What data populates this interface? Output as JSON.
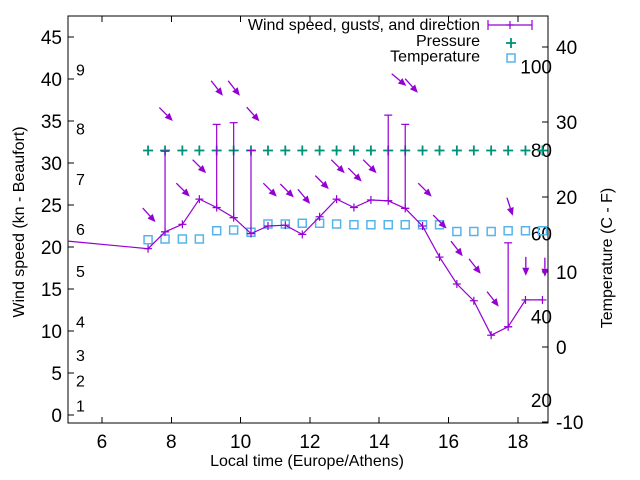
{
  "chart_data": {
    "type": "line",
    "title": "",
    "xlabel": "Local time (Europe/Athens)",
    "ylabel_left": "Wind speed (kn - Beaufort)",
    "ylabel_right": "Temperature (C - F)",
    "legend": [
      {
        "label": "Wind speed, gusts, and direction",
        "marker": "errorbar-line-plus",
        "color": "#9400d3"
      },
      {
        "label": "Pressure",
        "marker": "plus",
        "color": "#00917a"
      },
      {
        "label": "Temperature",
        "marker": "open-square",
        "color": "#56b4e9"
      }
    ],
    "axes": {
      "xlim": [
        5.02,
        18.87
      ],
      "x_ticks": [
        6,
        8,
        10,
        12,
        14,
        16,
        18
      ],
      "ylim_left": [
        -0.95,
        47.5
      ],
      "y_left_ticks": [
        0,
        5,
        10,
        15,
        20,
        25,
        30,
        35,
        40,
        45
      ],
      "ylim_right": [
        -10.13,
        44.13
      ],
      "y_right_ticks": [
        -10,
        0,
        10,
        20,
        30,
        40
      ],
      "fahrenheit_inner_ticks": [
        20,
        40,
        60,
        80,
        100
      ],
      "beaufort_inner_ticks": [
        {
          "bft": 1,
          "kn": 1
        },
        {
          "bft": 2,
          "kn": 4
        },
        {
          "bft": 3,
          "kn": 7
        },
        {
          "bft": 4,
          "kn": 11
        },
        {
          "bft": 5,
          "kn": 17
        },
        {
          "bft": 6,
          "kn": 22
        },
        {
          "bft": 7,
          "kn": 28
        },
        {
          "bft": 8,
          "kn": 34
        },
        {
          "bft": 9,
          "kn": 41
        }
      ],
      "grid": false,
      "legend_position": "top-right-inside"
    },
    "times": [
      7.33,
      7.82,
      8.32,
      8.81,
      9.31,
      9.8,
      10.3,
      10.79,
      11.29,
      11.78,
      12.28,
      12.77,
      13.27,
      13.76,
      14.26,
      14.75,
      15.25,
      15.74,
      16.24,
      16.73,
      17.23,
      17.72,
      18.22,
      18.71
    ],
    "wind_speed_kn": [
      19.8,
      21.8,
      22.7,
      25.7,
      24.7,
      23.5,
      21.6,
      22.5,
      22.6,
      21.5,
      23.6,
      25.7,
      24.7,
      25.6,
      25.5,
      24.6,
      22.5,
      18.8,
      15.6,
      13.6,
      9.5,
      10.5,
      13.7,
      13.7
    ],
    "wind_gust_kn": [
      null,
      31.4,
      null,
      null,
      34.6,
      34.8,
      31.5,
      null,
      null,
      null,
      null,
      null,
      null,
      null,
      35.7,
      34.6,
      null,
      null,
      null,
      null,
      null,
      20.5,
      null,
      null
    ],
    "wind_lead_in": {
      "t": 5.02,
      "kn": 20.7
    },
    "temperature_c": [
      14.3,
      14.4,
      14.4,
      14.4,
      15.5,
      15.6,
      15.3,
      16.4,
      16.4,
      16.5,
      16.5,
      16.4,
      16.3,
      16.3,
      16.3,
      16.3,
      16.3,
      16.3,
      15.4,
      15.4,
      15.4,
      15.5,
      15.5,
      15.5
    ],
    "pressure_plot_level_c": 26.2,
    "wind_direction_arrows": [
      {
        "t": 7.36,
        "kn": 23.8,
        "angle": 48
      },
      {
        "t": 7.85,
        "kn": 35.8,
        "angle": 45
      },
      {
        "t": 8.34,
        "kn": 26.8,
        "angle": 45
      },
      {
        "t": 8.81,
        "kn": 29.6,
        "angle": 45
      },
      {
        "t": 9.32,
        "kn": 38.9,
        "angle": 52
      },
      {
        "t": 9.81,
        "kn": 38.9,
        "angle": 52
      },
      {
        "t": 10.36,
        "kn": 35.8,
        "angle": 48
      },
      {
        "t": 10.85,
        "kn": 26.8,
        "angle": 45
      },
      {
        "t": 11.34,
        "kn": 26.7,
        "angle": 45
      },
      {
        "t": 11.83,
        "kn": 26.0,
        "angle": 50
      },
      {
        "t": 12.35,
        "kn": 27.7,
        "angle": 45
      },
      {
        "t": 12.81,
        "kn": 29.6,
        "angle": 45
      },
      {
        "t": 13.3,
        "kn": 28.6,
        "angle": 45
      },
      {
        "t": 13.73,
        "kn": 29.6,
        "angle": 45
      },
      {
        "t": 14.57,
        "kn": 39.9,
        "angle": 40
      },
      {
        "t": 14.93,
        "kn": 39.2,
        "angle": 48
      },
      {
        "t": 15.32,
        "kn": 26.8,
        "angle": 45
      },
      {
        "t": 15.75,
        "kn": 23.0,
        "angle": 45
      },
      {
        "t": 16.24,
        "kn": 19.8,
        "angle": 52
      },
      {
        "t": 16.76,
        "kn": 17.7,
        "angle": 52
      },
      {
        "t": 17.28,
        "kn": 13.8,
        "angle": 52
      },
      {
        "t": 17.77,
        "kn": 24.8,
        "angle": 72
      },
      {
        "t": 18.23,
        "kn": 17.7,
        "angle": 90
      },
      {
        "t": 18.78,
        "kn": 17.6,
        "angle": 90
      }
    ],
    "palette": {
      "wind": "#9400d3",
      "pressure": "#00917a",
      "temperature": "#56b4e9",
      "axis": "#000000",
      "background": "#ffffff"
    }
  }
}
